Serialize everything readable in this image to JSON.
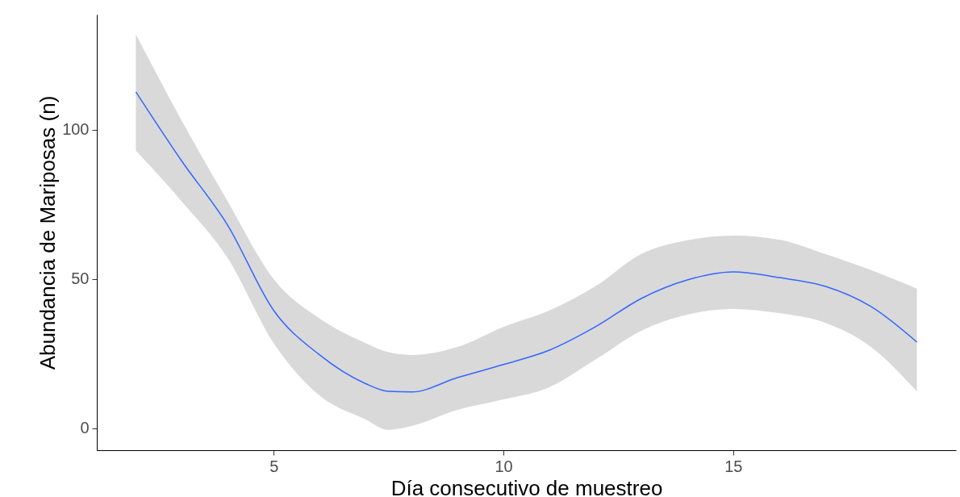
{
  "chart_data": {
    "type": "line",
    "xlabel": "Día consecutivo de muestreo",
    "ylabel": "Abundancia de Mariposas (n)",
    "xlim": [
      1.15,
      19.85
    ],
    "ylim": [
      -7.3,
      138.6
    ],
    "xticks": [
      5,
      10,
      15
    ],
    "yticks": [
      0,
      50,
      100
    ],
    "grid": false,
    "marker": "none",
    "line_style": "solid",
    "x": [
      2,
      3,
      4,
      5,
      6,
      7,
      7.5,
      8,
      9,
      10,
      11,
      12,
      13,
      14,
      15,
      16,
      17,
      18,
      19
    ],
    "series": [
      {
        "color": "#3366ff",
        "values": [
          112.7,
          89.5,
          68,
          39.5,
          24.6,
          15,
          12.4,
          12.2,
          17,
          21.4,
          26.2,
          34,
          43.5,
          49.7,
          52.4,
          50.5,
          47.6,
          40.8,
          28.9
        ],
        "lower": [
          93,
          76,
          57,
          28.6,
          11,
          3,
          -0.5,
          0.8,
          6.2,
          9.7,
          13.8,
          23,
          32.7,
          38.1,
          40,
          38.6,
          35.4,
          27.3,
          12.4
        ],
        "upper": [
          132,
          103,
          76,
          50,
          36.8,
          28.6,
          25.5,
          24.6,
          27.3,
          34,
          39.5,
          47.6,
          58.4,
          63,
          64.6,
          63.2,
          58.4,
          53,
          46.8
        ]
      }
    ]
  }
}
